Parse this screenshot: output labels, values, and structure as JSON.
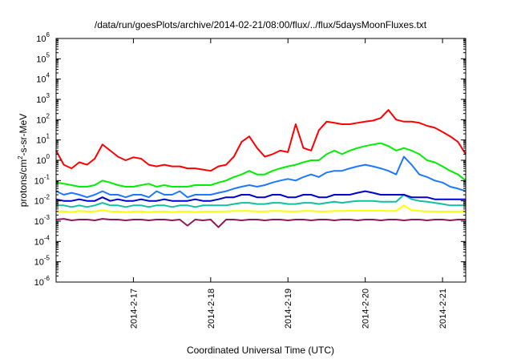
{
  "chart_data": {
    "type": "line",
    "title": "/data/run/goesPlots/archive/2014-02-21/08:00/flux/../flux/5daysMoonFluxes.txt",
    "xlabel": "Coordinated Universal Time (UTC)",
    "ylabel": "protons/cm2-s-sr-MeV",
    "ylabel_parts": {
      "a": "protons/cm",
      "sup": "2",
      "b": "-s-sr-MeV"
    },
    "yscale": "log",
    "ylim": [
      1e-06,
      1000000.0
    ],
    "ytick_exponents": [
      "-6",
      "-5",
      "-4",
      "-3",
      "-2",
      "-1",
      "0",
      "1",
      "2",
      "3",
      "4",
      "5",
      "6"
    ],
    "ytick_base": "10",
    "xlim": [
      0,
      5.3
    ],
    "xtick_values": [
      1,
      2,
      3,
      4,
      5
    ],
    "xtick_labels": [
      "2014-2-17",
      "2014-2-18",
      "2014-2-19",
      "2014-2-20",
      "2014-2-21"
    ],
    "grid": false,
    "legend": "none",
    "x": [
      0.0,
      0.1,
      0.2,
      0.3,
      0.4,
      0.5,
      0.6,
      0.7,
      0.8,
      0.9,
      1.0,
      1.1,
      1.2,
      1.3,
      1.4,
      1.5,
      1.6,
      1.7,
      1.8,
      1.9,
      2.0,
      2.1,
      2.2,
      2.3,
      2.4,
      2.5,
      2.6,
      2.7,
      2.8,
      2.9,
      3.0,
      3.1,
      3.2,
      3.3,
      3.4,
      3.5,
      3.6,
      3.7,
      3.8,
      3.9,
      4.0,
      4.1,
      4.2,
      4.3,
      4.4,
      4.5,
      4.6,
      4.7,
      4.8,
      4.9,
      5.0,
      5.1,
      5.2,
      5.3
    ],
    "series": [
      {
        "color": "#ff0000",
        "values": [
          3,
          0.6,
          0.4,
          0.8,
          0.6,
          1.2,
          6,
          3,
          1.5,
          1,
          1.4,
          1.2,
          0.6,
          0.5,
          0.6,
          0.5,
          0.5,
          0.4,
          0.4,
          0.35,
          0.3,
          0.5,
          0.6,
          1.5,
          8,
          15,
          4,
          1.5,
          2,
          3,
          2.5,
          60,
          4,
          3,
          30,
          80,
          70,
          60,
          60,
          70,
          80,
          90,
          120,
          300,
          100,
          80,
          80,
          70,
          50,
          40,
          25,
          15,
          8,
          2
        ]
      },
      {
        "color": "#00ee00",
        "values": [
          0.08,
          0.07,
          0.06,
          0.05,
          0.05,
          0.06,
          0.1,
          0.08,
          0.06,
          0.05,
          0.05,
          0.06,
          0.07,
          0.05,
          0.06,
          0.05,
          0.05,
          0.05,
          0.06,
          0.06,
          0.06,
          0.08,
          0.1,
          0.15,
          0.2,
          0.3,
          0.2,
          0.2,
          0.3,
          0.4,
          0.5,
          0.6,
          0.8,
          1,
          1,
          2,
          3,
          2,
          3,
          4,
          5,
          6,
          7,
          5,
          3,
          4,
          3,
          2,
          1,
          0.8,
          0.5,
          0.3,
          0.2,
          0.1
        ]
      },
      {
        "color": "#1e78ff",
        "values": [
          0.03,
          0.02,
          0.025,
          0.02,
          0.015,
          0.02,
          0.03,
          0.02,
          0.02,
          0.015,
          0.02,
          0.02,
          0.015,
          0.03,
          0.02,
          0.02,
          0.03,
          0.015,
          0.02,
          0.02,
          0.02,
          0.025,
          0.03,
          0.04,
          0.05,
          0.06,
          0.05,
          0.06,
          0.08,
          0.1,
          0.12,
          0.1,
          0.15,
          0.2,
          0.15,
          0.25,
          0.3,
          0.3,
          0.4,
          0.5,
          0.6,
          0.5,
          0.4,
          0.3,
          0.2,
          1.5,
          0.6,
          0.2,
          0.15,
          0.1,
          0.08,
          0.05,
          0.04,
          0.03
        ]
      },
      {
        "color": "#0000cc",
        "values": [
          0.012,
          0.01,
          0.01,
          0.012,
          0.01,
          0.01,
          0.015,
          0.01,
          0.012,
          0.01,
          0.01,
          0.012,
          0.01,
          0.01,
          0.012,
          0.01,
          0.01,
          0.01,
          0.012,
          0.01,
          0.01,
          0.012,
          0.015,
          0.015,
          0.02,
          0.02,
          0.015,
          0.015,
          0.02,
          0.02,
          0.015,
          0.015,
          0.02,
          0.02,
          0.015,
          0.015,
          0.02,
          0.02,
          0.02,
          0.025,
          0.03,
          0.025,
          0.02,
          0.02,
          0.02,
          0.02,
          0.015,
          0.015,
          0.015,
          0.012,
          0.012,
          0.012,
          0.012,
          0.012
        ]
      },
      {
        "color": "#10c0a0",
        "values": [
          0.006,
          0.006,
          0.005,
          0.006,
          0.005,
          0.006,
          0.008,
          0.006,
          0.006,
          0.005,
          0.006,
          0.006,
          0.005,
          0.006,
          0.006,
          0.005,
          0.006,
          0.006,
          0.005,
          0.006,
          0.006,
          0.006,
          0.006,
          0.007,
          0.008,
          0.008,
          0.007,
          0.007,
          0.008,
          0.008,
          0.007,
          0.007,
          0.008,
          0.008,
          0.007,
          0.008,
          0.009,
          0.008,
          0.009,
          0.01,
          0.01,
          0.01,
          0.009,
          0.009,
          0.009,
          0.02,
          0.012,
          0.01,
          0.009,
          0.008,
          0.007,
          0.006,
          0.006,
          0.006
        ]
      },
      {
        "color": "#ffff00",
        "values": [
          0.003,
          0.003,
          0.0028,
          0.0032,
          0.003,
          0.003,
          0.0035,
          0.003,
          0.003,
          0.0028,
          0.003,
          0.003,
          0.0028,
          0.003,
          0.003,
          0.0028,
          0.003,
          0.003,
          0.0028,
          0.003,
          0.003,
          0.003,
          0.003,
          0.0032,
          0.0032,
          0.0032,
          0.003,
          0.003,
          0.0032,
          0.0032,
          0.003,
          0.003,
          0.0032,
          0.0032,
          0.003,
          0.003,
          0.0032,
          0.0032,
          0.0033,
          0.0033,
          0.0033,
          0.0033,
          0.0033,
          0.0032,
          0.0032,
          0.006,
          0.0035,
          0.0032,
          0.003,
          0.003,
          0.003,
          0.003,
          0.003,
          0.003
        ]
      },
      {
        "color": "#8b1a5a",
        "values": [
          0.0012,
          0.0013,
          0.0011,
          0.0012,
          0.0012,
          0.0011,
          0.0013,
          0.0012,
          0.0012,
          0.0011,
          0.0012,
          0.0012,
          0.0011,
          0.0012,
          0.0012,
          0.0011,
          0.0012,
          0.0006,
          0.0012,
          0.0011,
          0.0012,
          0.0005,
          0.0012,
          0.0012,
          0.0011,
          0.0012,
          0.0012,
          0.0011,
          0.0012,
          0.0012,
          0.0011,
          0.0012,
          0.0012,
          0.0011,
          0.0012,
          0.0012,
          0.0011,
          0.0012,
          0.0012,
          0.0011,
          0.0012,
          0.0012,
          0.0011,
          0.0012,
          0.0012,
          0.0011,
          0.0012,
          0.0012,
          0.0011,
          0.0012,
          0.0012,
          0.0011,
          0.0012,
          0.0012
        ]
      }
    ]
  }
}
